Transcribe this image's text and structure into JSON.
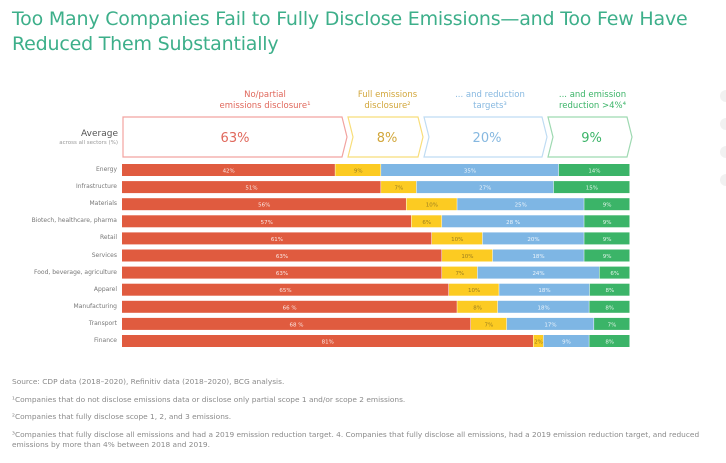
{
  "chart_data": {
    "type": "bar",
    "orientation": "horizontal-stacked-100",
    "title": "Too Many Companies Fail to Fully Disclose Emissions—and Too Few Have Reduced Them Substantially",
    "xlabel": "",
    "ylabel": "",
    "xlim": [
      0,
      100
    ],
    "grid": false,
    "legend_position": "top",
    "series": [
      {
        "name": "No/partial emissions disclosure¹",
        "color": "#E05B3F",
        "values": [
          42,
          51,
          56,
          57,
          61,
          63,
          63,
          65,
          66,
          68,
          81
        ],
        "labels": [
          "42%",
          "51%",
          "56%",
          "57%",
          "61%",
          "63%",
          "63%",
          "65%",
          "66 %",
          "68 %",
          "81%"
        ],
        "average": "63%"
      },
      {
        "name": "Full emissions disclosure²",
        "color": "#FCCB22",
        "values": [
          9,
          7,
          10,
          6,
          10,
          10,
          7,
          10,
          8,
          7,
          2
        ],
        "labels": [
          "9%",
          "7%",
          "10%",
          "6%",
          "10%",
          "10%",
          "7%",
          "10%",
          "8%",
          "7%",
          "2%"
        ],
        "average": "8%"
      },
      {
        "name": "... and reduction targets³",
        "color": "#7EB6E4",
        "values": [
          35,
          27,
          25,
          28,
          20,
          18,
          24,
          18,
          18,
          17,
          9
        ],
        "labels": [
          "35%",
          "27%",
          "25%",
          "28 %",
          "20%",
          "18%",
          "24%",
          "18%",
          "18%",
          "17%",
          "9%"
        ],
        "average": "20%"
      },
      {
        "name": "... and emission reduction >4%⁴",
        "color": "#3BB468",
        "values": [
          14,
          15,
          9,
          9,
          9,
          9,
          6,
          8,
          8,
          7,
          8
        ],
        "labels": [
          "14%",
          "15%",
          "9%",
          "9%",
          "9%",
          "9%",
          "6%",
          "8%",
          "8%",
          "7%",
          "8%"
        ],
        "average": "9%"
      }
    ],
    "categories": [
      "Energy",
      "Infrastructure",
      "Materials",
      "Biotech, healthcare, pharma",
      "Retail",
      "Services",
      "Food, beverage, agriculture",
      "Apparel",
      "Manufacturing",
      "Transport",
      "Finance"
    ],
    "average_row": {
      "label": "Average",
      "sublabel": "across all sectors (%)",
      "values": [
        63,
        8,
        20,
        9
      ]
    }
  },
  "header_labels": [
    {
      "line1": "No/partial",
      "line2": "emissions disclosure¹"
    },
    {
      "line1": "Full emissions",
      "line2": "disclosure²"
    },
    {
      "line1": "... and reduction",
      "line2": "targets³"
    },
    {
      "line1": "... and emission",
      "line2": "reduction >4%⁴"
    }
  ],
  "header_colors": {
    "border": [
      "#F2A3A0",
      "#F8DE7A",
      "#BFDCF3",
      "#9ED9B1"
    ],
    "text": [
      "#E0685C",
      "#D2A73C",
      "#86B8E0",
      "#3BB468"
    ]
  },
  "footnotes": {
    "source": "Source: CDP data (2018–2020), Refinitiv data (2018–2020), BCG analysis.",
    "note1": "¹Companies that do not disclose emissions data or disclose only partial scope 1 and/or scope 2 emissions.",
    "note2": "²Companies that fully disclose scope 1, 2, and 3 emissions.",
    "note3": "³Companies that fully disclose all emissions and had a 2019 emission reduction target. 4. Companies that fully disclose all emissions, had a 2019 emission reduction target, and reduced emissions by more than 4% between 2018 and 2019."
  },
  "colors": {
    "title": "#3DAF8A"
  }
}
